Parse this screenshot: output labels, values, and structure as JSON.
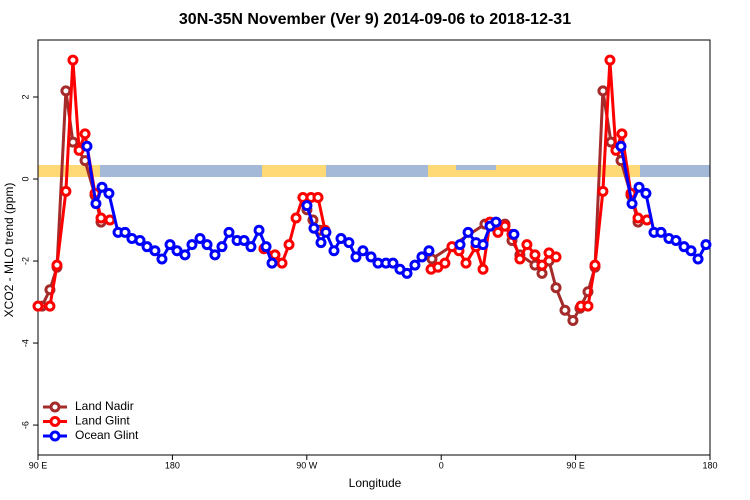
{
  "chart_data": {
    "type": "line",
    "title": "30N-35N November (Ver 9)   2014-09-06 to 2018-12-31",
    "x_label": "Longitude",
    "y_label": "XCO2 - MLO trend (ppm)",
    "xlim": [
      90,
      540
    ],
    "xticks": [
      {
        "value": 90,
        "label": "90 E"
      },
      {
        "value": 180,
        "label": "180"
      },
      {
        "value": 270,
        "label": "90 W"
      },
      {
        "value": 360,
        "label": "0"
      },
      {
        "value": 450,
        "label": "90 E"
      },
      {
        "value": 540,
        "label": "180"
      }
    ],
    "ylim": [
      -6.73,
      3.39
    ],
    "yticks": [
      -6,
      -4,
      -2,
      0,
      2
    ],
    "legend": "bottom-left",
    "series": [
      {
        "name": "Land Nadir",
        "color": "#a52a2a",
        "x": [
          92.7,
          98,
          102.7,
          108.7,
          113.4,
          121.5,
          128.2,
          132.2,
          null,
          270.1,
          274.1,
          278.8,
          null,
          353.8,
          389.3,
          402.7,
          407.4,
          412.7,
          422.8,
          427.5,
          432.2,
          436.9,
          442.9,
          448.2,
          452.9,
          458.3,
          463,
          468.3,
          473.7,
          480.4,
          487.1,
          491.8
        ],
        "values": [
          -3.1,
          -2.7,
          -2.15,
          2.15,
          0.9,
          0.45,
          -0.4,
          -1.05,
          null,
          -0.75,
          -1.0,
          -1.25,
          null,
          -1.95,
          -1.1,
          -1.1,
          -1.5,
          -1.85,
          -2.1,
          -2.3,
          -2.0,
          -2.65,
          -3.2,
          -3.45,
          -3.15,
          -2.75,
          -2.15,
          2.15,
          0.9,
          0.45,
          -0.4,
          -1.05
        ]
      },
      {
        "name": "Land Glint",
        "color": "#ff0000",
        "x": [
          90,
          98,
          102.7,
          108.7,
          113.4,
          117.5,
          121.5,
          128.2,
          132.2,
          138.2,
          null,
          241.3,
          248.7,
          253.4,
          258.1,
          262.8,
          267.4,
          272.8,
          277.5,
          282.2,
          null,
          353.2,
          357.8,
          362.5,
          367.2,
          371.9,
          376.6,
          383.3,
          388,
          392.7,
          398,
          402.7,
          407.4,
          412.7,
          417.4,
          422.8,
          427.5,
          432.2,
          436.9,
          null,
          453.6,
          458.3,
          463,
          468.3,
          473,
          477,
          481,
          487.1,
          491.8,
          497.8
        ],
        "values": [
          -3.1,
          -3.1,
          -2.1,
          -0.3,
          2.9,
          0.7,
          1.1,
          -0.35,
          -0.95,
          -1.0,
          null,
          -1.7,
          -1.85,
          -2.05,
          -1.6,
          -0.95,
          -0.45,
          -0.45,
          -0.45,
          -1.25,
          null,
          -2.2,
          -2.15,
          -2.05,
          -1.65,
          -1.75,
          -2.05,
          -1.65,
          -2.2,
          -1.05,
          -1.3,
          -1.15,
          -1.35,
          -1.95,
          -1.6,
          -1.85,
          -2.1,
          -1.8,
          -1.9,
          null,
          -3.1,
          -3.1,
          -2.1,
          -0.3,
          2.9,
          0.7,
          1.1,
          -0.35,
          -0.95,
          -1.0
        ]
      },
      {
        "name": "Ocean Glint",
        "color": "#0000ff",
        "x": [
          122.8,
          128.8,
          132.9,
          137.5,
          143.6,
          148.3,
          152.9,
          158.3,
          163,
          168.3,
          173,
          178.4,
          183.1,
          188.4,
          193.1,
          198.5,
          203.2,
          208.5,
          213.2,
          217.9,
          223.3,
          228,
          232.6,
          238,
          242.7,
          246.7,
          null,
          270.1,
          274.8,
          279.5,
          282.8,
          288.2,
          292.9,
          298.2,
          302.9,
          307.6,
          313,
          317.7,
          323,
          327.7,
          332.4,
          337.1,
          342.4,
          347.1,
          351.8,
          null,
          372.6,
          378,
          383.3,
          388,
          392.7,
          396.7,
          null,
          408.7,
          null,
          480.4,
          487.8,
          492.5,
          497.1,
          502.5,
          507.2,
          512.5,
          517.2,
          522.6,
          527.3,
          532,
          537.3
        ],
        "values": [
          0.8,
          -0.6,
          -0.2,
          -0.35,
          -1.3,
          -1.3,
          -1.45,
          -1.5,
          -1.65,
          -1.75,
          -1.95,
          -1.6,
          -1.75,
          -1.85,
          -1.6,
          -1.45,
          -1.6,
          -1.85,
          -1.65,
          -1.3,
          -1.5,
          -1.5,
          -1.65,
          -1.25,
          -1.65,
          -2.05,
          null,
          -0.65,
          -1.2,
          -1.55,
          -1.3,
          -1.75,
          -1.45,
          -1.55,
          -1.9,
          -1.75,
          -1.9,
          -2.05,
          -2.05,
          -2.05,
          -2.2,
          -2.3,
          -2.1,
          -1.9,
          -1.75,
          null,
          -1.6,
          -1.3,
          -1.55,
          -1.6,
          -1.15,
          -1.05,
          null,
          -1.35,
          null,
          0.8,
          -0.6,
          -0.2,
          -0.35,
          -1.3,
          -1.3,
          -1.45,
          -1.5,
          -1.65,
          -1.75,
          -1.95,
          -1.6
        ]
      }
    ]
  }
}
